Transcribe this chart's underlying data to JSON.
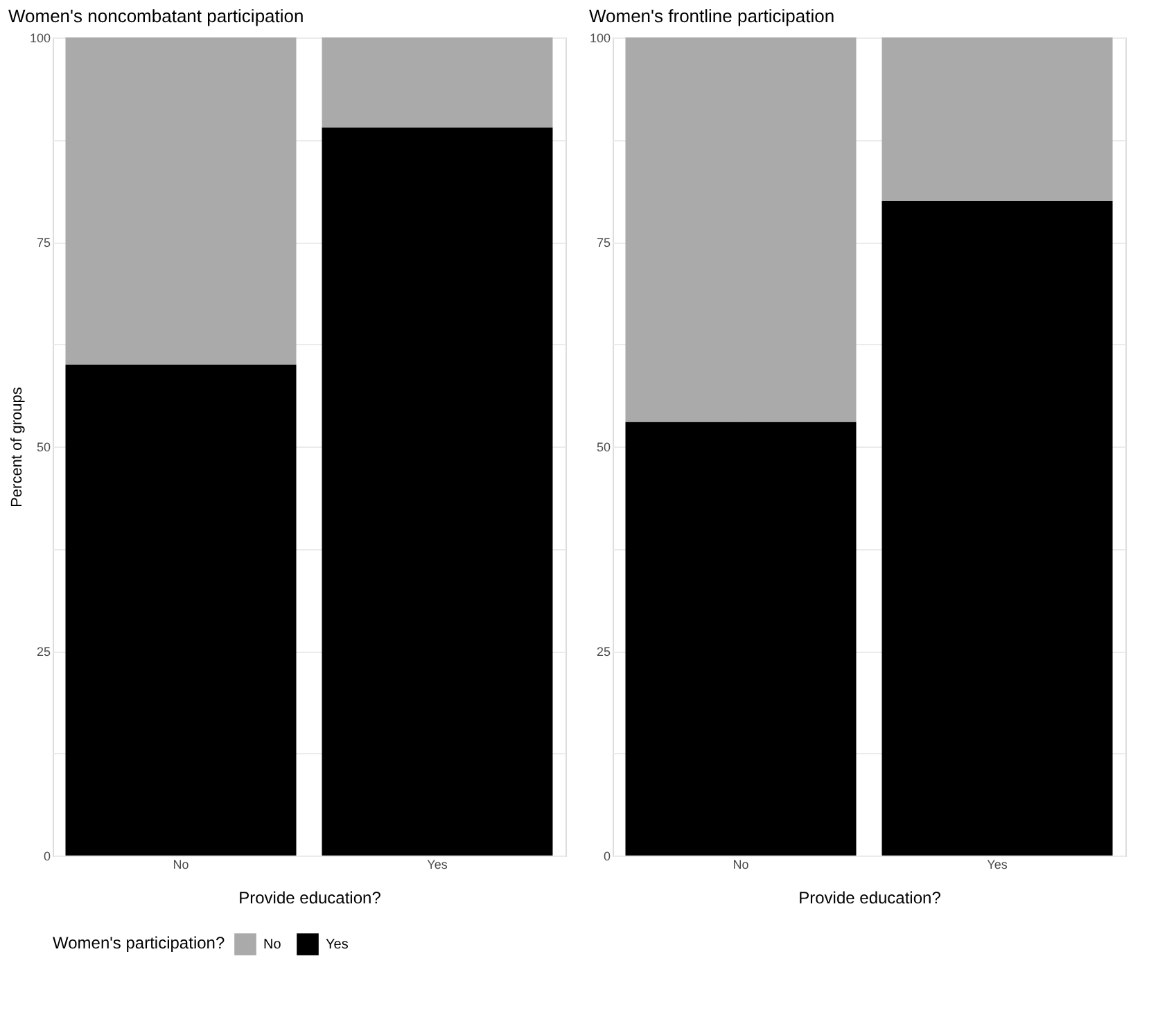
{
  "chart_data": [
    {
      "type": "bar",
      "title": "Women's noncombatant participation",
      "xlabel": "Provide education?",
      "ylabel": "Percent of groups",
      "categories": [
        "No",
        "Yes"
      ],
      "stacked": true,
      "legend_title": "Women's participation?",
      "legend": "bottom",
      "grid": true,
      "series": [
        {
          "name": "Yes",
          "color": "#000000",
          "values": [
            60,
            89
          ]
        },
        {
          "name": "No",
          "color": "#aaaaaa",
          "values": [
            40,
            11
          ]
        }
      ],
      "ylim": [
        0,
        100
      ],
      "yticks": [
        0,
        {
          "value": 12.5,
          "label": null
        },
        25,
        {
          "value": 37.5,
          "label": null
        },
        50,
        {
          "value": 62.5,
          "label": null
        },
        75,
        {
          "value": 87.5,
          "label": null
        },
        100
      ]
    },
    {
      "type": "bar",
      "title": "Women's frontline participation",
      "xlabel": "Provide education?",
      "categories": [
        "No",
        "Yes"
      ],
      "stacked": true,
      "grid": true,
      "series": [
        {
          "name": "Yes",
          "color": "#000000",
          "values": [
            53,
            80
          ]
        },
        {
          "name": "No",
          "color": "#aaaaaa",
          "values": [
            47,
            20
          ]
        }
      ],
      "ylim": [
        0,
        100
      ],
      "yticks": [
        0,
        {
          "value": 12.5,
          "label": null
        },
        25,
        {
          "value": 37.5,
          "label": null
        },
        50,
        {
          "value": 62.5,
          "label": null
        },
        75,
        {
          "value": 87.5,
          "label": null
        },
        100
      ]
    }
  ]
}
